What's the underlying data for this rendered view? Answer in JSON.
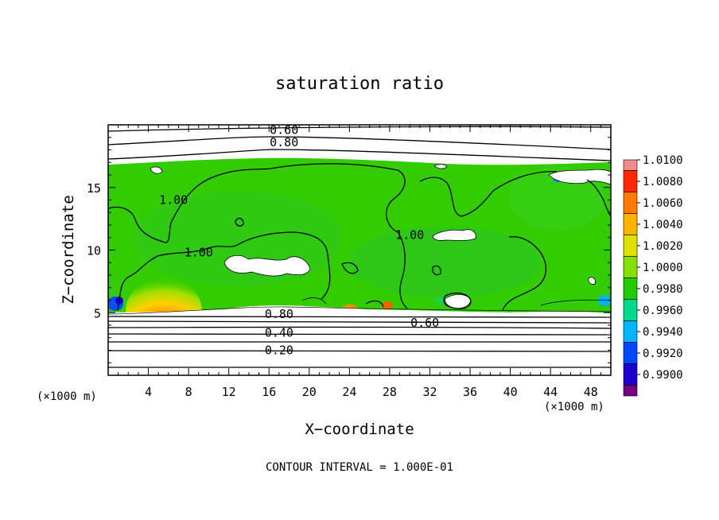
{
  "chart_data": {
    "type": "heatmap",
    "title": "saturation ratio",
    "xlabel": "X−coordinate",
    "ylabel": "Z−coordinate",
    "x_unit": "(×1000 m)",
    "y_unit": "(×1000 m)",
    "xlim": [
      0,
      50
    ],
    "ylim": [
      0,
      20
    ],
    "x_ticks": [
      4,
      8,
      12,
      16,
      20,
      24,
      28,
      32,
      36,
      40,
      44,
      48
    ],
    "y_ticks": [
      5,
      10,
      15
    ],
    "colorbar": {
      "levels": [
        1.01,
        1.008,
        1.006,
        1.004,
        1.002,
        1.0,
        0.998,
        0.996,
        0.994,
        0.992,
        0.99
      ],
      "labels": [
        "1.0100",
        "1.0080",
        "1.0060",
        "1.0040",
        "1.0020",
        "1.0000",
        "0.9980",
        "0.9960",
        "0.9940",
        "0.9920",
        "0.9900"
      ],
      "colors": [
        "#f08c8c",
        "#ff2a00",
        "#ff7a00",
        "#ffb400",
        "#dde000",
        "#88e000",
        "#22cc00",
        "#00d890",
        "#00b4ff",
        "#0048ff",
        "#1a00c8",
        "#780080"
      ]
    },
    "contour_labels": [
      {
        "text": "0.60",
        "x": 17.5,
        "z": 19.6
      },
      {
        "text": "0.80",
        "x": 17.5,
        "z": 18.6
      },
      {
        "text": "1.00",
        "x": 6.5,
        "z": 14.0
      },
      {
        "text": "1.00",
        "x": 9.0,
        "z": 9.8
      },
      {
        "text": "1.00",
        "x": 30.0,
        "z": 11.2
      },
      {
        "text": "0.80",
        "x": 17.0,
        "z": 4.9
      },
      {
        "text": "0.60",
        "x": 31.5,
        "z": 4.2
      },
      {
        "text": "0.40",
        "x": 17.0,
        "z": 3.4
      },
      {
        "text": "0.20",
        "x": 17.0,
        "z": 2.0
      }
    ],
    "contour_interval": "CONTOUR INTERVAL = 1.000E-01"
  }
}
